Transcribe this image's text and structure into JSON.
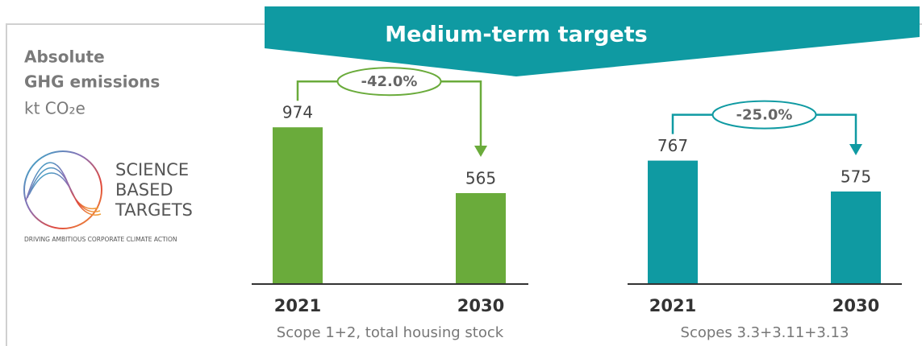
{
  "banner": {
    "title": "Medium-term targets"
  },
  "metric": {
    "title_lines": [
      "Absolute",
      "GHG emissions"
    ],
    "unit": "kt CO₂e"
  },
  "logo": {
    "lines": [
      "SCIENCE",
      "BASED",
      "TARGETS"
    ],
    "tagline": "DRIVING AMBITIOUS CORPORATE CLIMATE ACTION"
  },
  "chart_data": [
    {
      "type": "bar",
      "categories": [
        "2021",
        "2030"
      ],
      "values": [
        974,
        565
      ],
      "color": "#6aab3b",
      "xlabel": "Scope 1+2, total housing stock",
      "annotation": "-42.0%"
    },
    {
      "type": "bar",
      "categories": [
        "2021",
        "2030"
      ],
      "values": [
        767,
        575
      ],
      "color": "#0f9aa2",
      "xlabel": "Scopes 3.3+3.11+3.13",
      "annotation": "-25.0%"
    }
  ]
}
